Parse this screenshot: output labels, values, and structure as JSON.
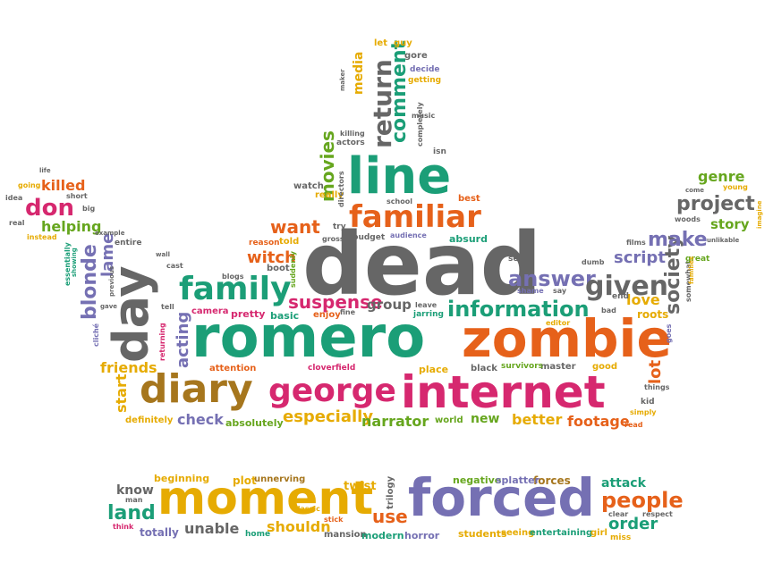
{
  "colors": {
    "green": "#1b9e77",
    "orange": "#e6611a",
    "purple": "#7570b3",
    "magenta": "#d6286f",
    "olive": "#66a61e",
    "gold": "#e6ab02",
    "brown": "#a6761d",
    "gray": "#666666"
  },
  "words": [
    {
      "text": "dead",
      "color": "gray"
    },
    {
      "text": "romero",
      "color": "green"
    },
    {
      "text": "zombie",
      "color": "orange"
    },
    {
      "text": "internet",
      "color": "magenta"
    },
    {
      "text": "george",
      "color": "magenta"
    },
    {
      "text": "diary",
      "color": "brown"
    },
    {
      "text": "day",
      "color": "gray"
    },
    {
      "text": "line",
      "color": "green"
    },
    {
      "text": "familiar",
      "color": "orange"
    },
    {
      "text": "family",
      "color": "green"
    },
    {
      "text": "moment",
      "color": "gold"
    },
    {
      "text": "forced",
      "color": "purple"
    },
    {
      "text": "return",
      "color": "gray"
    },
    {
      "text": "comment",
      "color": "green"
    },
    {
      "text": "media",
      "color": "gold"
    },
    {
      "text": "movies",
      "color": "olive"
    },
    {
      "text": "want",
      "color": "orange"
    },
    {
      "text": "witch",
      "color": "orange"
    },
    {
      "text": "suspense",
      "color": "magenta"
    },
    {
      "text": "answer",
      "color": "purple"
    },
    {
      "text": "given",
      "color": "gray"
    },
    {
      "text": "information",
      "color": "green"
    },
    {
      "text": "society",
      "color": "gray"
    },
    {
      "text": "make",
      "color": "purple"
    },
    {
      "text": "project",
      "color": "gray"
    },
    {
      "text": "genre",
      "color": "olive"
    },
    {
      "text": "story",
      "color": "olive"
    },
    {
      "text": "script",
      "color": "purple"
    },
    {
      "text": "love",
      "color": "gold"
    },
    {
      "text": "don",
      "color": "magenta"
    },
    {
      "text": "killed",
      "color": "orange"
    },
    {
      "text": "helping",
      "color": "olive"
    },
    {
      "text": "blonde",
      "color": "purple"
    },
    {
      "text": "lame",
      "color": "purple"
    },
    {
      "text": "acting",
      "color": "purple"
    },
    {
      "text": "friends",
      "color": "gold"
    },
    {
      "text": "start",
      "color": "gold"
    },
    {
      "text": "especially",
      "color": "gold"
    },
    {
      "text": "narrator",
      "color": "olive"
    },
    {
      "text": "check",
      "color": "purple"
    },
    {
      "text": "better",
      "color": "gold"
    },
    {
      "text": "footage",
      "color": "orange"
    },
    {
      "text": "new",
      "color": "olive"
    },
    {
      "text": "lot",
      "color": "orange"
    },
    {
      "text": "group",
      "color": "gray"
    },
    {
      "text": "people",
      "color": "orange"
    },
    {
      "text": "order",
      "color": "green"
    },
    {
      "text": "attack",
      "color": "green"
    },
    {
      "text": "land",
      "color": "green"
    },
    {
      "text": "use",
      "color": "orange"
    },
    {
      "text": "know",
      "color": "gray"
    },
    {
      "text": "shouldn",
      "color": "gold"
    },
    {
      "text": "unable",
      "color": "gray"
    },
    {
      "text": "forces",
      "color": "brown"
    },
    {
      "text": "negative",
      "color": "olive"
    },
    {
      "text": "splatter",
      "color": "purple"
    },
    {
      "text": "twist",
      "color": "gold"
    },
    {
      "text": "plot",
      "color": "gold"
    },
    {
      "text": "beginning",
      "color": "gold"
    },
    {
      "text": "unnerving",
      "color": "brown"
    },
    {
      "text": "totally",
      "color": "purple"
    },
    {
      "text": "home",
      "color": "green"
    },
    {
      "text": "mansion",
      "color": "gray"
    },
    {
      "text": "modern",
      "color": "green"
    },
    {
      "text": "horror",
      "color": "purple"
    },
    {
      "text": "students",
      "color": "gold"
    },
    {
      "text": "seeing",
      "color": "gold"
    },
    {
      "text": "entertaining",
      "color": "green"
    },
    {
      "text": "girl",
      "color": "gold"
    },
    {
      "text": "miss",
      "color": "gold"
    },
    {
      "text": "clear",
      "color": "gray"
    },
    {
      "text": "respect",
      "color": "gray"
    },
    {
      "text": "trilogy",
      "color": "gray"
    },
    {
      "text": "stick",
      "color": "orange"
    },
    {
      "text": "classic",
      "color": "gold"
    },
    {
      "text": "man",
      "color": "gray"
    },
    {
      "text": "think",
      "color": "magenta"
    },
    {
      "text": "let",
      "color": "gold"
    },
    {
      "text": "guy",
      "color": "gold"
    },
    {
      "text": "gore",
      "color": "gray"
    },
    {
      "text": "decide",
      "color": "purple"
    },
    {
      "text": "getting",
      "color": "gold"
    },
    {
      "text": "maker",
      "color": "gray"
    },
    {
      "text": "music",
      "color": "gray"
    },
    {
      "text": "completely",
      "color": "gray"
    },
    {
      "text": "killing",
      "color": "gray"
    },
    {
      "text": "actors",
      "color": "gray"
    },
    {
      "text": "isn",
      "color": "gray"
    },
    {
      "text": "really",
      "color": "gold"
    },
    {
      "text": "directors",
      "color": "gray"
    },
    {
      "text": "best",
      "color": "orange"
    },
    {
      "text": "watch",
      "color": "gray"
    },
    {
      "text": "school",
      "color": "gray"
    },
    {
      "text": "try",
      "color": "gray"
    },
    {
      "text": "gross",
      "color": "gray"
    },
    {
      "text": "budget",
      "color": "gray"
    },
    {
      "text": "audience",
      "color": "purple"
    },
    {
      "text": "absurd",
      "color": "green"
    },
    {
      "text": "reason",
      "color": "orange"
    },
    {
      "text": "told",
      "color": "gold"
    },
    {
      "text": "boot",
      "color": "gray"
    },
    {
      "text": "suddenly",
      "color": "olive"
    },
    {
      "text": "blogs",
      "color": "gray"
    },
    {
      "text": "camera",
      "color": "magenta"
    },
    {
      "text": "pretty",
      "color": "magenta"
    },
    {
      "text": "basic",
      "color": "green"
    },
    {
      "text": "enjoy",
      "color": "orange"
    },
    {
      "text": "fine",
      "color": "gray"
    },
    {
      "text": "leave",
      "color": "gray"
    },
    {
      "text": "jarring",
      "color": "green"
    },
    {
      "text": "set",
      "color": "gray"
    },
    {
      "text": "shame",
      "color": "purple"
    },
    {
      "text": "say",
      "color": "gray"
    },
    {
      "text": "dumb",
      "color": "gray"
    },
    {
      "text": "films",
      "color": "gray"
    },
    {
      "text": "end",
      "color": "gray"
    },
    {
      "text": "editor",
      "color": "gold"
    },
    {
      "text": "bad",
      "color": "gray"
    },
    {
      "text": "roots",
      "color": "gold"
    },
    {
      "text": "somewhat",
      "color": "gray"
    },
    {
      "text": "goes",
      "color": "purple"
    },
    {
      "text": "good",
      "color": "gold"
    },
    {
      "text": "things",
      "color": "gray"
    },
    {
      "text": "kid",
      "color": "gray"
    },
    {
      "text": "simply",
      "color": "gold"
    },
    {
      "text": "read",
      "color": "orange"
    },
    {
      "text": "master",
      "color": "gray"
    },
    {
      "text": "survivors",
      "color": "olive"
    },
    {
      "text": "black",
      "color": "gray"
    },
    {
      "text": "place",
      "color": "gold"
    },
    {
      "text": "world",
      "color": "olive"
    },
    {
      "text": "cloverfield",
      "color": "magenta"
    },
    {
      "text": "attention",
      "color": "orange"
    },
    {
      "text": "absolutely",
      "color": "olive"
    },
    {
      "text": "definitely",
      "color": "gold"
    },
    {
      "text": "returning",
      "color": "magenta"
    },
    {
      "text": "tell",
      "color": "gray"
    },
    {
      "text": "cast",
      "color": "gray"
    },
    {
      "text": "wall",
      "color": "gray"
    },
    {
      "text": "entire",
      "color": "gray"
    },
    {
      "text": "example",
      "color": "gray"
    },
    {
      "text": "previous",
      "color": "gray"
    },
    {
      "text": "gave",
      "color": "gray"
    },
    {
      "text": "cliché",
      "color": "purple"
    },
    {
      "text": "showing",
      "color": "green"
    },
    {
      "text": "essentially",
      "color": "green"
    },
    {
      "text": "instead",
      "color": "gold"
    },
    {
      "text": "real",
      "color": "gray"
    },
    {
      "text": "idea",
      "color": "gray"
    },
    {
      "text": "going",
      "color": "gold"
    },
    {
      "text": "life",
      "color": "gray"
    },
    {
      "text": "short",
      "color": "gray"
    },
    {
      "text": "big",
      "color": "gray"
    },
    {
      "text": "woods",
      "color": "gray"
    },
    {
      "text": "come",
      "color": "gray"
    },
    {
      "text": "young",
      "color": "gold"
    },
    {
      "text": "imagine",
      "color": "gold"
    },
    {
      "text": "unlikable",
      "color": "gray"
    },
    {
      "text": "great",
      "color": "olive"
    },
    {
      "text": "families",
      "color": "gold"
    }
  ]
}
